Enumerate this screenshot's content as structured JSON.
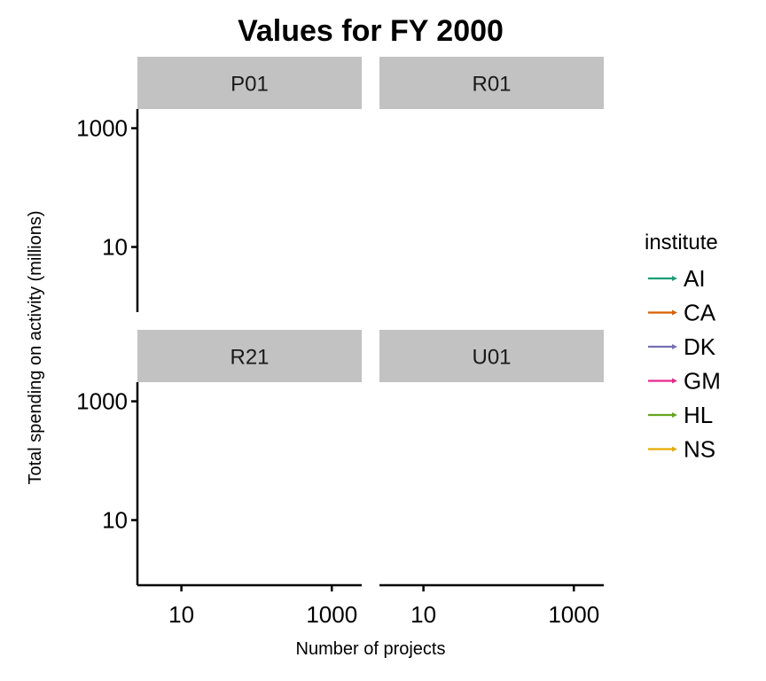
{
  "chart_data": {
    "type": "line",
    "title": "Values for FY 2000",
    "xlabel": "Number of projects",
    "ylabel": "Total spending on activity (millions)",
    "x_scale": "log10",
    "y_scale": "log10",
    "x_ticks": [
      {
        "value": 10,
        "label": "10"
      },
      {
        "value": 1000,
        "label": "1000"
      }
    ],
    "y_ticks": [
      {
        "value": 10,
        "label": "10"
      },
      {
        "value": 1000,
        "label": "1000"
      }
    ],
    "xlim": [
      2.6,
      2500
    ],
    "ylim": [
      0.8,
      2100
    ],
    "grid": false,
    "facets": [
      "P01",
      "R01",
      "R21",
      "U01"
    ],
    "legend": {
      "title": "institute",
      "position": "right",
      "entries": [
        {
          "label": "AI",
          "color": "#1b9e77"
        },
        {
          "label": "CA",
          "color": "#d95f02"
        },
        {
          "label": "DK",
          "color": "#7570b3"
        },
        {
          "label": "GM",
          "color": "#e7298a"
        },
        {
          "label": "HL",
          "color": "#66a61e"
        },
        {
          "label": "NS",
          "color": "#e6ab02"
        }
      ]
    },
    "series": [
      {
        "name": "AI",
        "points": []
      },
      {
        "name": "CA",
        "points": []
      },
      {
        "name": "DK",
        "points": []
      },
      {
        "name": "GM",
        "points": []
      },
      {
        "name": "HL",
        "points": []
      },
      {
        "name": "NS",
        "points": []
      }
    ],
    "colors": {
      "strip_background": "#c2c2c2",
      "axis_line": "#000000"
    }
  }
}
